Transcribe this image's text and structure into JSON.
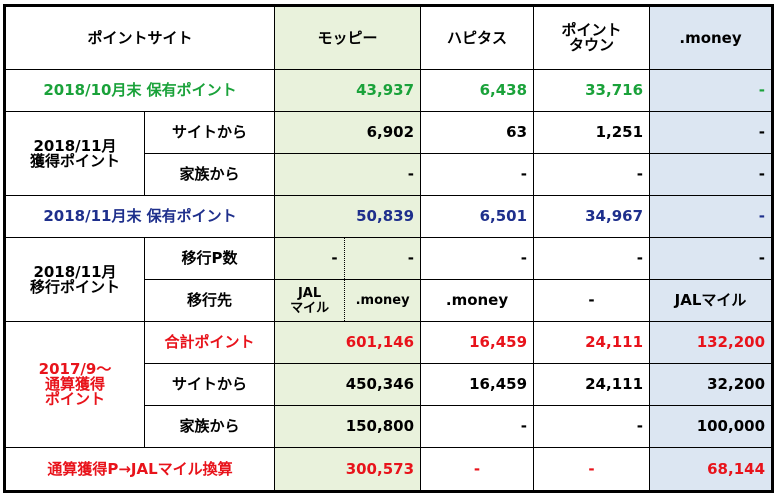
{
  "header": {
    "site_label": "ポイントサイト",
    "moppy": "モッピー",
    "hapitas": "ハピタス",
    "pointtown_line1": "ポイント",
    "pointtown_line2": "タウン",
    "money": ".money"
  },
  "row_oct_end": {
    "label": "2018/10月末 保有ポイント",
    "moppy": "43,937",
    "hapitas": "6,438",
    "pointtown": "33,716",
    "money": "-"
  },
  "nov_earned": {
    "label_line1": "2018/11月",
    "label_line2": "獲得ポイント",
    "site": {
      "label": "サイトから",
      "moppy": "6,902",
      "hapitas": "63",
      "pointtown": "1,251",
      "money": "-"
    },
    "family": {
      "label": "家族から",
      "moppy": "-",
      "hapitas": "-",
      "pointtown": "-",
      "money": "-"
    }
  },
  "row_nov_end": {
    "label": "2018/11月末 保有ポイント",
    "moppy": "50,839",
    "hapitas": "6,501",
    "pointtown": "34,967",
    "money": "-"
  },
  "nov_transfer": {
    "label_line1": "2018/11月",
    "label_line2": "移行ポイント",
    "count": {
      "label": "移行P数",
      "moppy_a": "-",
      "moppy_b": "-",
      "hapitas": "-",
      "pointtown": "-",
      "money": "-"
    },
    "dest": {
      "label": "移行先",
      "moppy_a_line1": "JAL",
      "moppy_a_line2": "マイル",
      "moppy_b": ".money",
      "hapitas": ".money",
      "pointtown": "-",
      "money": "JALマイル"
    }
  },
  "cumulative": {
    "label_line1": "2017/9〜",
    "label_line2": "通算獲得",
    "label_line3": "ポイント",
    "total": {
      "label": "合計ポイント",
      "moppy": "601,146",
      "hapitas": "16,459",
      "pointtown": "24,111",
      "money": "132,200"
    },
    "site": {
      "label": "サイトから",
      "moppy": "450,346",
      "hapitas": "16,459",
      "pointtown": "24,111",
      "money": "32,200"
    },
    "family": {
      "label": "家族から",
      "moppy": "150,800",
      "hapitas": "-",
      "pointtown": "-",
      "money": "100,000"
    }
  },
  "jal_row": {
    "label": "通算獲得P→JALマイル換算",
    "moppy": "300,573",
    "hapitas": "-",
    "pointtown": "-",
    "money": "68,144"
  },
  "colors": {
    "green_text": "#1aa23a",
    "navy_text": "#1e2f8c",
    "red_text": "#e8131b",
    "moppy_bg": "#e9f2dc",
    "money_bg": "#dce6f2"
  }
}
